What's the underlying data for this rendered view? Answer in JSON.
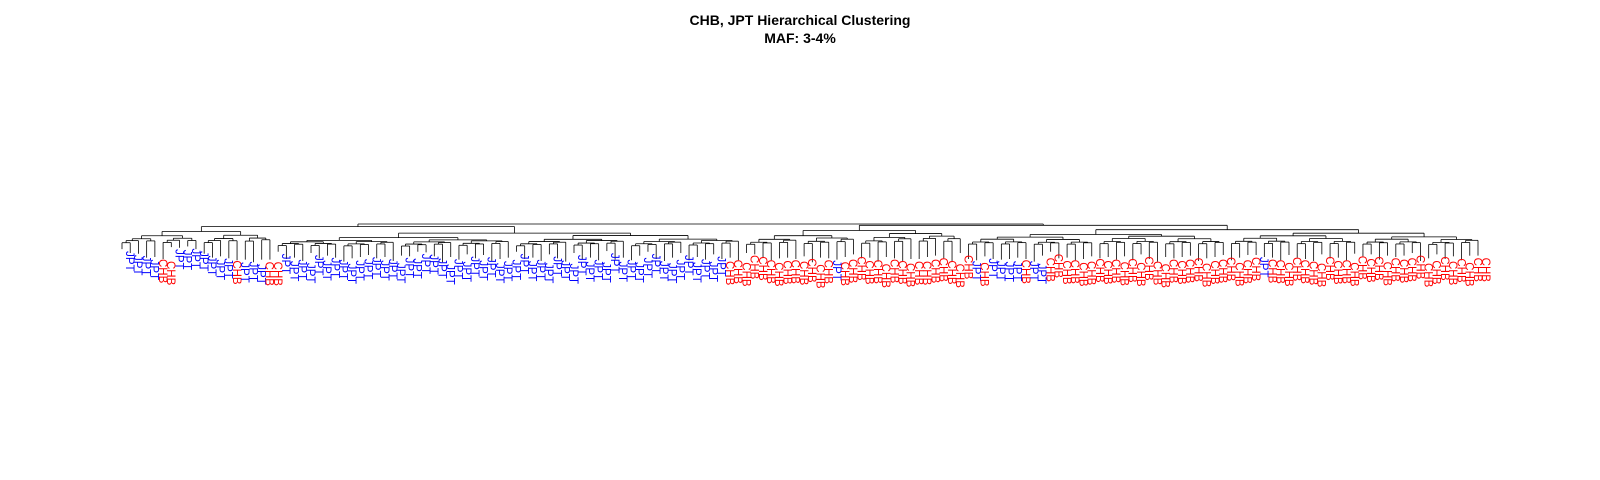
{
  "chart_data": {
    "type": "dendrogram",
    "title": "CHB, JPT Hierarchical Clustering",
    "subtitle": "MAF: 3-4%",
    "xlabel": "",
    "ylabel": "",
    "grid": false,
    "groups": [
      {
        "name": "JPT",
        "color": "#0000ff"
      },
      {
        "name": "CHB",
        "color": "#ff0000"
      }
    ],
    "leaves": [
      "JPT",
      "JPT",
      "JPT",
      "JPT",
      "CHB",
      "CHB",
      "JPT",
      "JPT",
      "JPT",
      "JPT",
      "JPT",
      "JPT",
      "JPT",
      "CHB",
      "JPT",
      "JPT",
      "JPT",
      "CHB",
      "CHB",
      "JPT",
      "JPT",
      "JPT",
      "JPT",
      "JPT",
      "JPT",
      "JPT",
      "JPT",
      "JPT",
      "JPT",
      "JPT",
      "JPT",
      "JPT",
      "JPT",
      "JPT",
      "JPT",
      "JPT",
      "JPT",
      "JPT",
      "JPT",
      "JPT",
      "JPT",
      "JPT",
      "JPT",
      "JPT",
      "JPT",
      "JPT",
      "JPT",
      "JPT",
      "JPT",
      "JPT",
      "JPT",
      "JPT",
      "JPT",
      "JPT",
      "JPT",
      "JPT",
      "JPT",
      "JPT",
      "JPT",
      "JPT",
      "JPT",
      "JPT",
      "JPT",
      "JPT",
      "JPT",
      "JPT",
      "JPT",
      "JPT",
      "JPT",
      "JPT",
      "JPT",
      "JPT",
      "JPT",
      "CHB",
      "CHB",
      "CHB",
      "CHB",
      "CHB",
      "CHB",
      "CHB",
      "CHB",
      "CHB",
      "CHB",
      "CHB",
      "CHB",
      "CHB",
      "JPT",
      "CHB",
      "CHB",
      "CHB",
      "CHB",
      "CHB",
      "CHB",
      "CHB",
      "CHB",
      "CHB",
      "CHB",
      "CHB",
      "CHB",
      "CHB",
      "CHB",
      "CHB",
      "CHB",
      "JPT",
      "CHB",
      "JPT",
      "JPT",
      "JPT",
      "JPT",
      "CHB",
      "JPT",
      "JPT",
      "CHB",
      "CHB",
      "CHB",
      "CHB",
      "CHB",
      "CHB",
      "CHB",
      "CHB",
      "CHB",
      "CHB",
      "CHB",
      "CHB",
      "CHB",
      "CHB",
      "CHB",
      "CHB",
      "CHB",
      "CHB",
      "CHB",
      "CHB",
      "CHB",
      "CHB",
      "CHB",
      "CHB",
      "CHB",
      "CHB",
      "JPT",
      "CHB",
      "CHB",
      "CHB",
      "CHB",
      "CHB",
      "CHB",
      "CHB",
      "CHB",
      "CHB",
      "CHB",
      "CHB",
      "CHB",
      "CHB",
      "CHB",
      "CHB",
      "CHB",
      "CHB",
      "CHB",
      "CHB",
      "CHB",
      "CHB",
      "CHB",
      "CHB",
      "CHB",
      "CHB",
      "CHB",
      "CHB"
    ],
    "leaf_heights": [
      0.38,
      0.44,
      0.45,
      0.51,
      0.5,
      0.53,
      0.35,
      0.36,
      0.34,
      0.38,
      0.45,
      0.51,
      0.49,
      0.52,
      0.55,
      0.54,
      0.58,
      0.54,
      0.54,
      0.42,
      0.53,
      0.51,
      0.56,
      0.44,
      0.52,
      0.48,
      0.51,
      0.57,
      0.52,
      0.5,
      0.47,
      0.52,
      0.5,
      0.56,
      0.48,
      0.49,
      0.42,
      0.43,
      0.49,
      0.58,
      0.5,
      0.54,
      0.46,
      0.52,
      0.47,
      0.56,
      0.53,
      0.51,
      0.42,
      0.53,
      0.51,
      0.56,
      0.46,
      0.52,
      0.57,
      0.44,
      0.54,
      0.51,
      0.55,
      0.41,
      0.54,
      0.51,
      0.55,
      0.48,
      0.42,
      0.53,
      0.56,
      0.51,
      0.44,
      0.55,
      0.5,
      0.54,
      0.46,
      0.53,
      0.51,
      0.55,
      0.44,
      0.46,
      0.51,
      0.55,
      0.52,
      0.51,
      0.53,
      0.49,
      0.58,
      0.51,
      0.52,
      0.54,
      0.5,
      0.46,
      0.52,
      0.51,
      0.57,
      0.5,
      0.52,
      0.56,
      0.53,
      0.53,
      0.5,
      0.48,
      0.52,
      0.57,
      0.44,
      0.53,
      0.55,
      0.49,
      0.53,
      0.54,
      0.53,
      0.51,
      0.53,
      0.57,
      0.48,
      0.42,
      0.52,
      0.51,
      0.55,
      0.53,
      0.49,
      0.52,
      0.5,
      0.54,
      0.49,
      0.55,
      0.46,
      0.53,
      0.57,
      0.5,
      0.52,
      0.5,
      0.48,
      0.56,
      0.52,
      0.5,
      0.47,
      0.55,
      0.51,
      0.47,
      0.47,
      0.5,
      0.51,
      0.55,
      0.47,
      0.51,
      0.53,
      0.56,
      0.46,
      0.52,
      0.51,
      0.55,
      0.45,
      0.49,
      0.46,
      0.54,
      0.48,
      0.5,
      0.48,
      0.44,
      0.56,
      0.52,
      0.46,
      0.53,
      0.49,
      0.55,
      0.48,
      0.48
    ],
    "clades": [
      {
        "first": 0,
        "last": 18,
        "depth": 3,
        "height": 0.09
      },
      {
        "first": 19,
        "last": 75,
        "depth": 3,
        "height": 0.12
      },
      {
        "first": 76,
        "last": 102,
        "depth": 3,
        "height": 0.08
      },
      {
        "first": 103,
        "last": 165,
        "depth": 3,
        "height": 0.08
      }
    ],
    "top_merges": [
      {
        "children": [
          0,
          1
        ],
        "height": 0.04
      },
      {
        "children": [
          2,
          3
        ],
        "height": 0.02
      },
      {
        "root": true,
        "height": 0.0
      }
    ]
  }
}
